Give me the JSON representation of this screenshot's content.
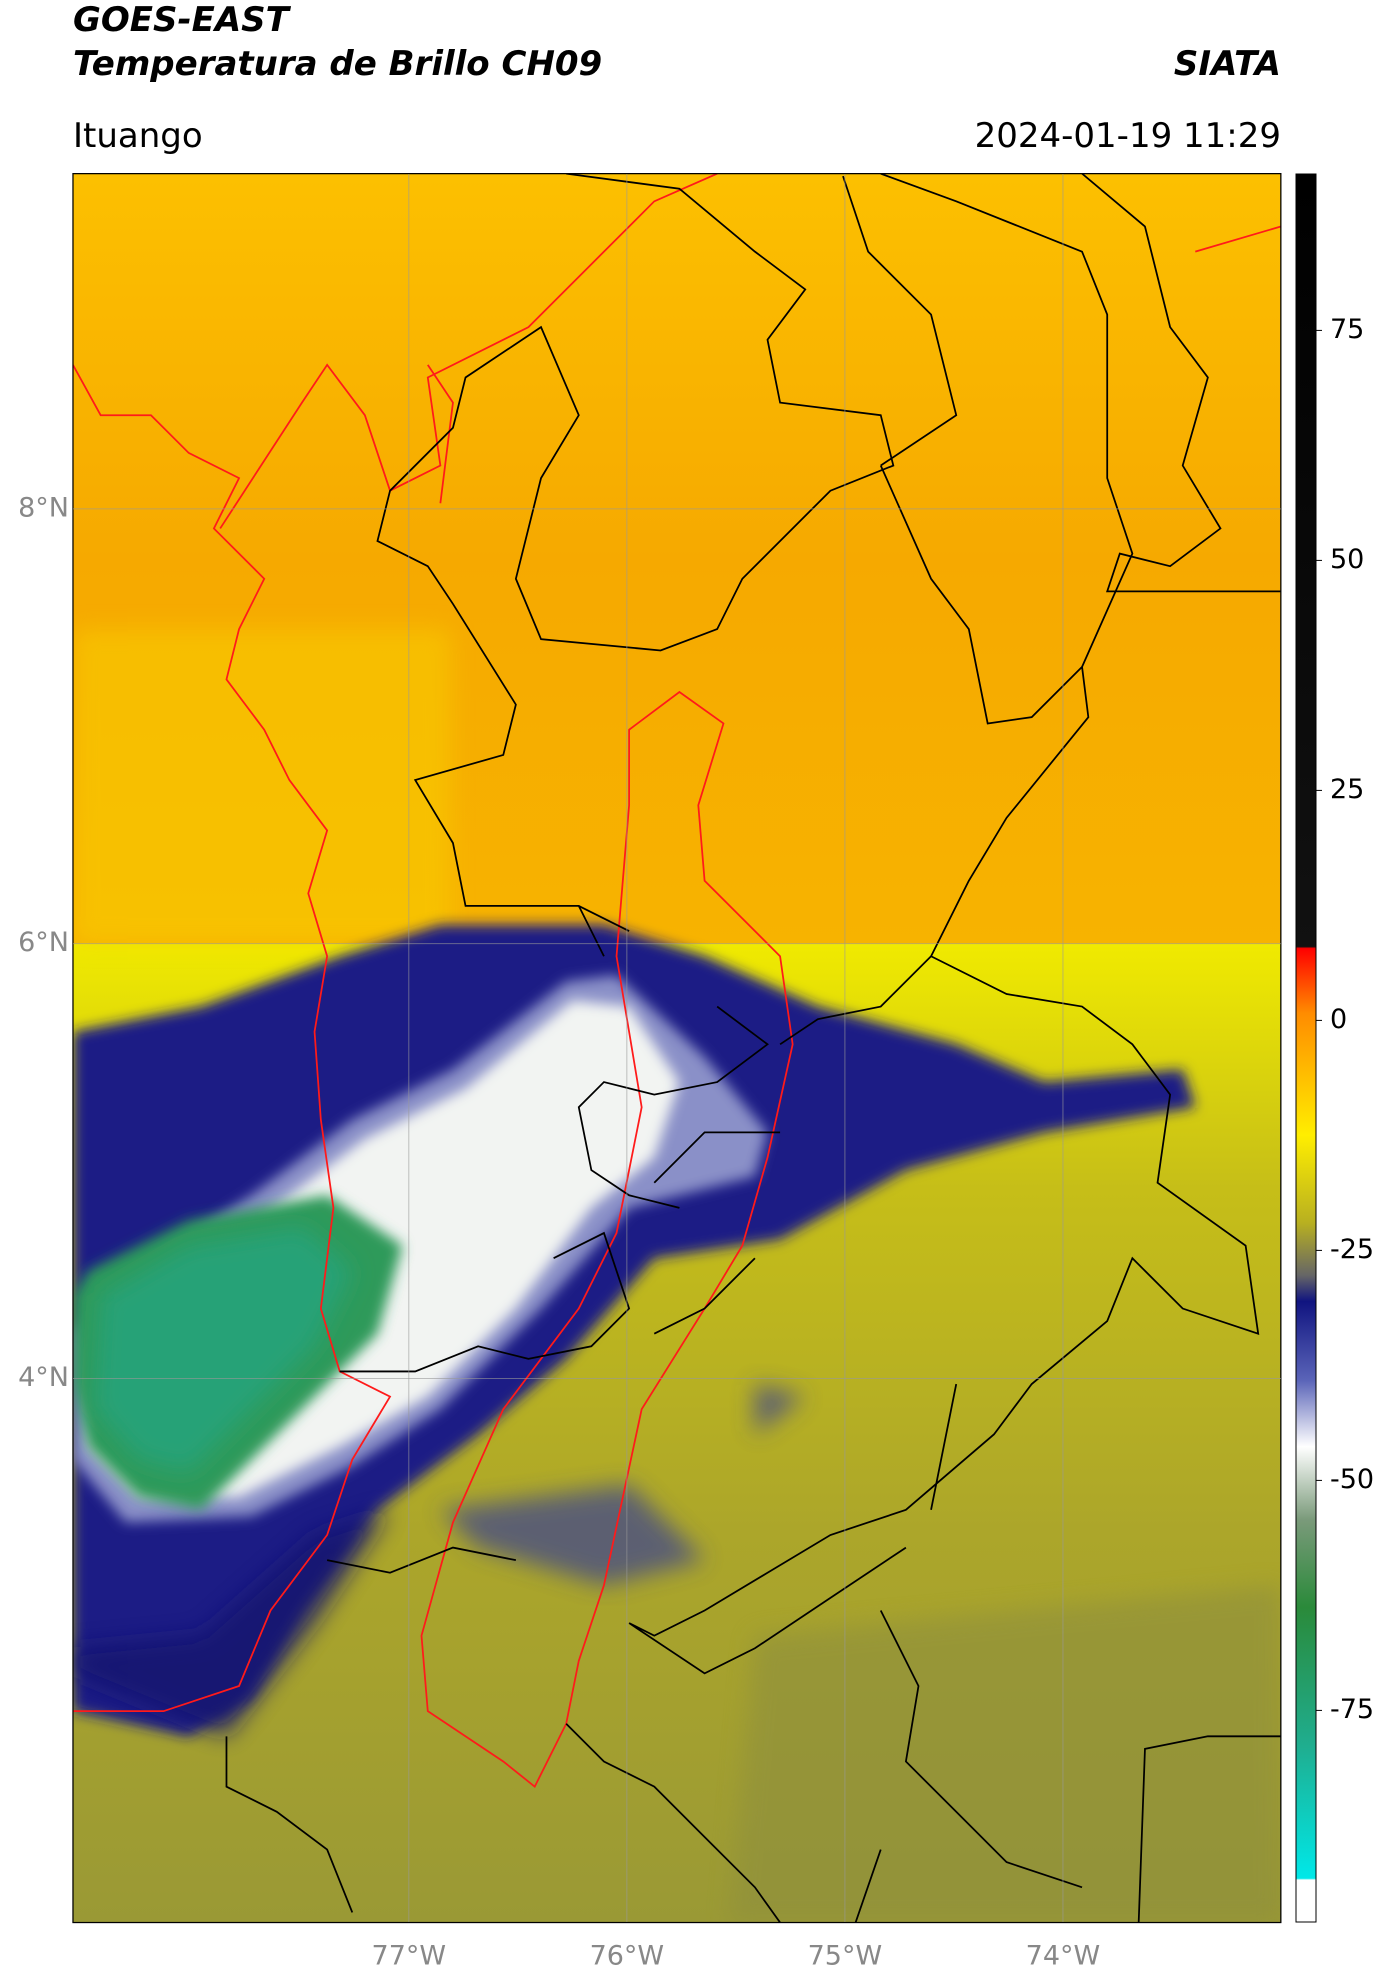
{
  "header": {
    "title": "GOES-EAST",
    "subtitle": "Temperatura de Brillo CH09",
    "source": "SIATA",
    "location": "Ituango",
    "datetime": "2024-01-19 11:29"
  },
  "map": {
    "xlim": [
      -78.54,
      -73.0
    ],
    "ylim": [
      1.5,
      9.54
    ],
    "xticks": [
      {
        "value": -77,
        "label": "77°W"
      },
      {
        "value": -76,
        "label": "76°W"
      },
      {
        "value": -75,
        "label": "75°W"
      },
      {
        "value": -74,
        "label": "74°W"
      }
    ],
    "yticks": [
      {
        "value": 8,
        "label": "8°N"
      },
      {
        "value": 6,
        "label": "6°N"
      },
      {
        "value": 4,
        "label": "4°N"
      }
    ],
    "grid": true
  },
  "colorbar": {
    "lim": [
      -98,
      92
    ],
    "ticks": [
      75,
      50,
      25,
      0,
      -25,
      -50,
      -75
    ]
  }
}
